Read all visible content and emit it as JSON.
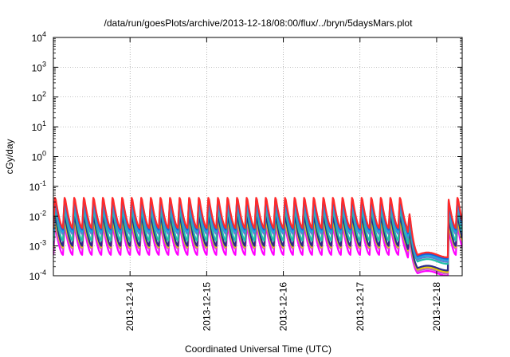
{
  "chart_data": {
    "type": "line",
    "title": "/data/run/goesPlots/archive/2013-12-18/08:00/flux/../bryn/5daysMars.plot",
    "xlabel": "Coordinated Universal Time (UTC)",
    "ylabel": "cGy/day",
    "yscale": "log",
    "ylim": [
      0.0001,
      10000
    ],
    "xlim": [
      "2013-12-13 00:00",
      "2013-12-18 08:00"
    ],
    "x_ticks": [
      "2013-12-14",
      "2013-12-15",
      "2013-12-16",
      "2013-12-17",
      "2013-12-18"
    ],
    "y_ticks": [
      {
        "base": "10",
        "exp": "-4",
        "value": 0.0001
      },
      {
        "base": "10",
        "exp": "-3",
        "value": 0.001
      },
      {
        "base": "10",
        "exp": "-2",
        "value": 0.01
      },
      {
        "base": "10",
        "exp": "-1",
        "value": 0.1
      },
      {
        "base": "10",
        "exp": "0",
        "value": 1
      },
      {
        "base": "10",
        "exp": "1",
        "value": 10
      },
      {
        "base": "10",
        "exp": "2",
        "value": 100
      },
      {
        "base": "10",
        "exp": "3",
        "value": 1000
      },
      {
        "base": "10",
        "exp": "4",
        "value": 10000
      }
    ],
    "grid": true,
    "legend": "none",
    "pattern": {
      "cycles_per_day": 8,
      "drop_start": "2013-12-17 14:30",
      "drop_bottom_start": "2013-12-17 18:00",
      "recover": "2013-12-18 03:45"
    },
    "series": [
      {
        "color": "#ff2a2a",
        "peak": 0.05,
        "trough": 0.004,
        "quiet": 0.0005
      },
      {
        "color": "#1e5cd6",
        "peak": 0.045,
        "trough": 0.0035,
        "quiet": 0.00045
      },
      {
        "color": "#1ca7e6",
        "peak": 0.04,
        "trough": 0.003,
        "quiet": 0.0004
      },
      {
        "color": "#5a7fd0",
        "peak": 0.03,
        "trough": 0.0025,
        "quiet": 0.00035
      },
      {
        "color": "#20c0a8",
        "peak": 0.02,
        "trough": 0.0015,
        "quiet": 0.0003
      },
      {
        "color": "#2a2a8a",
        "peak": 0.012,
        "trough": 0.001,
        "quiet": 0.00018
      },
      {
        "color": "#e8d000",
        "peak": 0.008,
        "trough": 0.0009,
        "quiet": 0.00016
      },
      {
        "color": "#c060c0",
        "peak": 0.006,
        "trough": 0.0008,
        "quiet": 0.00014
      },
      {
        "color": "#ff00ff",
        "peak": 0.005,
        "trough": 0.0005,
        "quiet": 0.00012
      }
    ]
  }
}
